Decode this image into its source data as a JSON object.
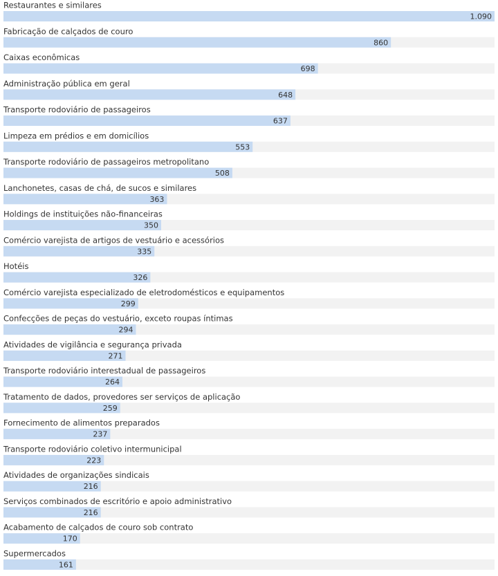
{
  "chart_data": {
    "type": "hbar",
    "categories": [
      "Restaurantes e similares",
      "Fabricação de calçados de couro",
      "Caixas econômicas",
      "Administração pública em geral",
      "Transporte rodoviário de passageiros",
      "Limpeza em prédios e em domicílios",
      "Transporte rodoviário de passageiros metropolitano",
      "Lanchonetes, casas de chá, de sucos e similares",
      "Holdings de instituições não-financeiras",
      "Comércio varejista de artigos de vestuário e acessórios",
      "Hotéis",
      "Comércio varejista especializado de eletrodomésticos e equipamentos",
      "Confecções de peças do vestuário, exceto roupas íntimas",
      "Atividades de vigilância e segurança privada",
      "Transporte rodoviário interestadual de passageiros",
      "Tratamento de dados, provedores ser serviços de aplicação",
      "Fornecimento de alimentos preparados",
      "Transporte rodoviário coletivo intermunicipal",
      "Atividades de organizações sindicais",
      "Serviços combinados de escritório e apoio administrativo",
      "Acabamento de calçados de couro sob contrato",
      "Supermercados"
    ],
    "values": [
      1090,
      860,
      698,
      648,
      637,
      553,
      508,
      363,
      350,
      335,
      326,
      299,
      294,
      271,
      264,
      259,
      237,
      223,
      216,
      216,
      170,
      161
    ],
    "value_labels": [
      "1.090",
      "860",
      "698",
      "648",
      "637",
      "553",
      "508",
      "363",
      "350",
      "335",
      "326",
      "299",
      "294",
      "271",
      "264",
      "259",
      "237",
      "223",
      "216",
      "216",
      "170",
      "161"
    ],
    "color": "#c6daf2"
  }
}
